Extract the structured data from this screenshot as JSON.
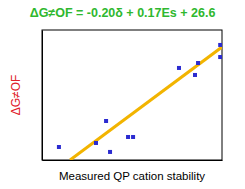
{
  "chart_data": {
    "type": "scatter",
    "title": "ΔG≠OF = -0.20δ + 0.17Es + 26.6",
    "x_label": "Measured QP cation stability",
    "y_label": "ΔG≠OF",
    "xlim": [
      0,
      10
    ],
    "ylim": [
      0,
      10
    ],
    "xticks": [],
    "yticks": [],
    "tick_labels": false,
    "grid": false,
    "series": [
      {
        "type": "scatter",
        "color": "#2b2bd0",
        "marker": "square",
        "x": [
          0.94,
          3.0,
          3.56,
          3.78,
          4.78,
          5.06,
          7.61,
          8.5,
          8.67,
          9.9,
          9.9
        ],
        "values": [
          1.0,
          1.31,
          3.0,
          0.62,
          1.77,
          1.77,
          7.08,
          6.54,
          7.46,
          7.92,
          8.85
        ]
      },
      {
        "type": "line",
        "color": "#f2b400",
        "line_style": "solid",
        "x": [
          1.56,
          10
        ],
        "values": [
          0,
          8.69
        ]
      }
    ]
  }
}
